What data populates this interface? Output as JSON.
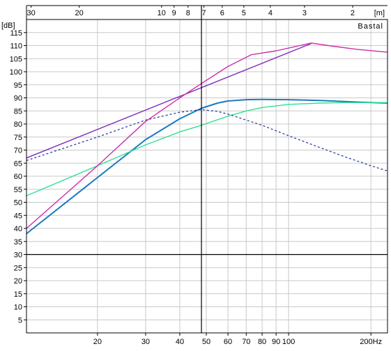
{
  "chart_data": {
    "type": "line",
    "x_scale": "log",
    "x_unit": "Hz",
    "xlim": [
      11,
      230
    ],
    "ylim": [
      0,
      120
    ],
    "y_unit_label": "[dB]",
    "top_axis_unit_label": "[m]",
    "watermark": "Bastal",
    "x_ticks": [
      {
        "value": 20,
        "label": "20"
      },
      {
        "value": 30,
        "label": "30"
      },
      {
        "value": 40,
        "label": "40"
      },
      {
        "value": 50,
        "label": "50"
      },
      {
        "value": 60,
        "label": "60"
      },
      {
        "value": 70,
        "label": "70"
      },
      {
        "value": 80,
        "label": "80"
      },
      {
        "value": 90,
        "label": "90"
      },
      {
        "value": 100,
        "label": "100"
      },
      {
        "value": 200,
        "label": "200Hz"
      }
    ],
    "top_ticks": [
      {
        "value": 30,
        "label": "30"
      },
      {
        "value": 20,
        "label": "20"
      },
      {
        "value": 10,
        "label": "10"
      },
      {
        "value": 9,
        "label": "9"
      },
      {
        "value": 8,
        "label": "8"
      },
      {
        "value": 7,
        "label": "7"
      },
      {
        "value": 6,
        "label": "6"
      },
      {
        "value": 5,
        "label": "5"
      },
      {
        "value": 4,
        "label": "4"
      },
      {
        "value": 3,
        "label": "3"
      },
      {
        "value": 2,
        "label": "2"
      }
    ],
    "y_ticks": [
      5,
      10,
      15,
      20,
      25,
      30,
      35,
      40,
      45,
      50,
      55,
      60,
      65,
      70,
      75,
      80,
      85,
      90,
      95,
      100,
      105,
      110,
      115
    ],
    "y_baseline": 30,
    "cursor_x": 48,
    "series": [
      {
        "color": "#1a7abf",
        "style": "solid",
        "x": [
          11,
          20,
          30,
          40,
          48,
          55,
          60,
          70,
          80,
          100,
          130,
          160,
          200,
          230
        ],
        "y": [
          38,
          59.5,
          74,
          82,
          86,
          88,
          88.8,
          89.3,
          89.4,
          89.3,
          89,
          88.6,
          88.2,
          88
        ]
      },
      {
        "color": "#2fe095",
        "style": "solid",
        "x": [
          11,
          20,
          30,
          40,
          48,
          60,
          70,
          80,
          100,
          130,
          160,
          200,
          230
        ],
        "y": [
          52.5,
          64,
          72,
          77,
          79.5,
          83,
          85,
          86.3,
          87.5,
          88,
          88.2,
          88.2,
          88.2
        ]
      },
      {
        "color": "#1c2f9a",
        "style": "dashed",
        "x": [
          11,
          20,
          30,
          40,
          48,
          55,
          60,
          70,
          80,
          100,
          130,
          160,
          200,
          230
        ],
        "y": [
          66,
          75,
          81.5,
          84.5,
          85.5,
          84.8,
          83.8,
          81.5,
          79.5,
          75.5,
          71,
          67.5,
          64,
          62
        ]
      },
      {
        "color": "#7a2bbf",
        "style": "solid",
        "x": [
          11,
          121
        ],
        "y": [
          67,
          110.8
        ]
      },
      {
        "color": "#cc2ea8",
        "style": "solid",
        "x": [
          11,
          20,
          30,
          40,
          48,
          60,
          73,
          90,
          121,
          140,
          180,
          230
        ],
        "y": [
          40,
          64,
          81,
          90,
          95.5,
          102,
          106.5,
          108,
          111,
          110,
          108.5,
          107.5
        ]
      }
    ]
  }
}
